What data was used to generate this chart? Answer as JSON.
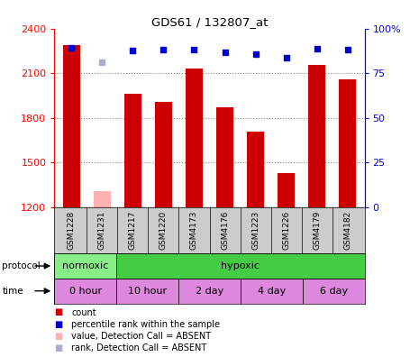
{
  "title": "GDS61 / 132807_at",
  "samples": [
    "GSM1228",
    "GSM1231",
    "GSM1217",
    "GSM1220",
    "GSM4173",
    "GSM4176",
    "GSM1223",
    "GSM1226",
    "GSM4179",
    "GSM4182"
  ],
  "counts": [
    2290,
    null,
    1960,
    1910,
    2130,
    1870,
    1710,
    1430,
    2155,
    2060
  ],
  "counts_absent": [
    null,
    1310,
    null,
    null,
    null,
    null,
    null,
    null,
    null,
    null
  ],
  "ranks": [
    2270,
    null,
    2250,
    2260,
    2260,
    2240,
    2230,
    2205,
    2265,
    2260
  ],
  "ranks_absent": [
    null,
    2175,
    null,
    null,
    null,
    null,
    null,
    null,
    null,
    null
  ],
  "ylim_left": [
    1200,
    2400
  ],
  "ylim_right": [
    0,
    100
  ],
  "yticks_left": [
    1200,
    1500,
    1800,
    2100,
    2400
  ],
  "yticks_right": [
    0,
    25,
    50,
    75,
    100
  ],
  "bar_color": "#cc0000",
  "bar_absent_color": "#ffb0b0",
  "rank_color": "#0000cc",
  "rank_absent_color": "#aab0cc",
  "protocol_normoxic_color": "#88ee88",
  "protocol_hypoxic_color": "#44cc44",
  "time_color": "#dd88dd",
  "protocol_groups": [
    {
      "label": "normoxic",
      "start": 0,
      "end": 2
    },
    {
      "label": "hypoxic",
      "start": 2,
      "end": 10
    }
  ],
  "time_groups": [
    {
      "label": "0 hour",
      "start": 0,
      "end": 2
    },
    {
      "label": "10 hour",
      "start": 2,
      "end": 4
    },
    {
      "label": "2 day",
      "start": 4,
      "end": 6
    },
    {
      "label": "4 day",
      "start": 6,
      "end": 8
    },
    {
      "label": "6 day",
      "start": 8,
      "end": 10
    }
  ],
  "legend_items": [
    {
      "label": "count",
      "color": "#cc0000"
    },
    {
      "label": "percentile rank within the sample",
      "color": "#0000cc"
    },
    {
      "label": "value, Detection Call = ABSENT",
      "color": "#ffb0b0"
    },
    {
      "label": "rank, Detection Call = ABSENT",
      "color": "#aab0cc"
    }
  ],
  "grid_lines": [
    1500,
    1800,
    2100
  ],
  "sample_dividers": [
    1,
    2,
    3,
    4,
    5,
    6,
    7,
    8,
    9
  ]
}
